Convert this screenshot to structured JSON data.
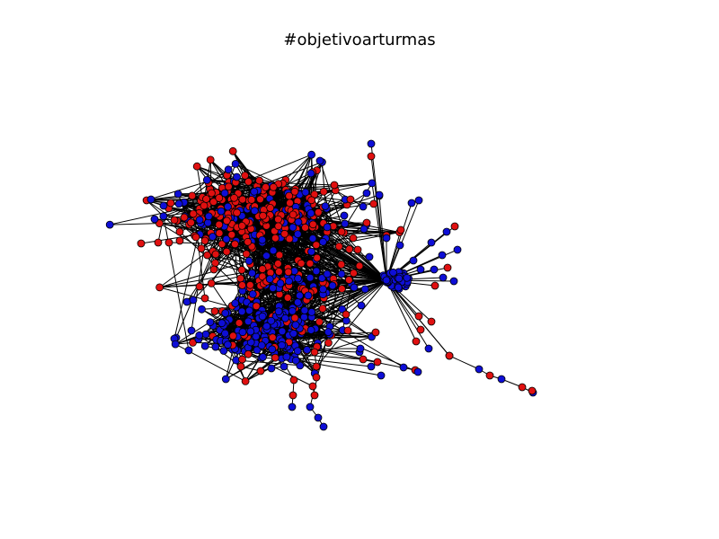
{
  "figure": {
    "title": "#objetivoarturmas"
  },
  "legend": {
    "node_colors": {
      "red": "#e01010",
      "blue": "#0e0ed6"
    },
    "edge_color": "#000000",
    "node_outline_color": "#000000"
  }
}
